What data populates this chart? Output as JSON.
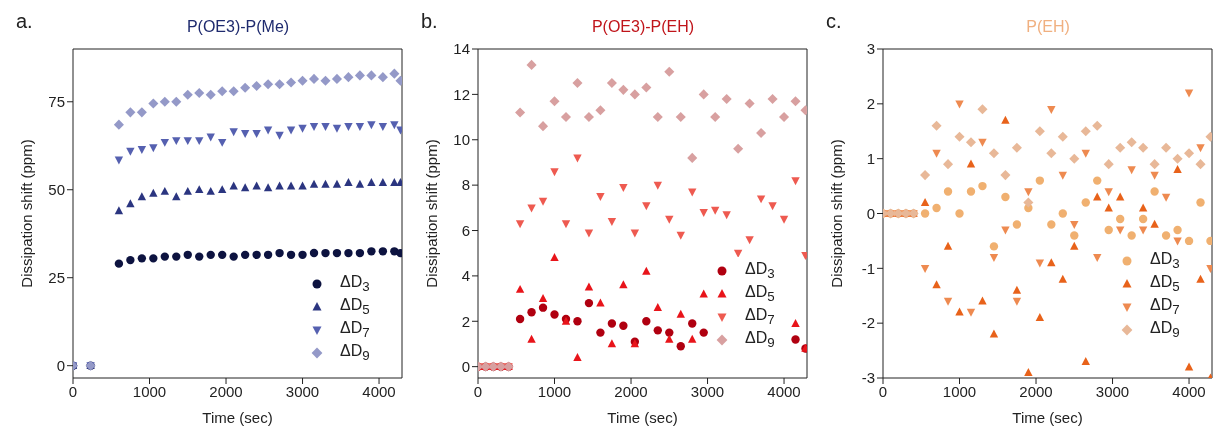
{
  "chart_data": [
    {
      "type": "scatter",
      "title": "P(OE3)-P(Me)",
      "xlabel": "Time (sec)",
      "ylabel": "Dissipation shift (ppm)",
      "annotations": [
        "a."
      ],
      "x": [
        0,
        230,
        600,
        750,
        900,
        1050,
        1200,
        1350,
        1500,
        1650,
        1800,
        1950,
        2100,
        2250,
        2400,
        2550,
        2700,
        2850,
        3000,
        3150,
        3300,
        3450,
        3600,
        3750,
        3900,
        4050,
        4200,
        4280
      ],
      "xlim": [
        0,
        4300
      ],
      "xticks": [
        0,
        1000,
        2000,
        3000,
        4000
      ],
      "ylim": [
        -3.5,
        90
      ],
      "yticks": [
        0,
        25,
        50,
        75
      ],
      "grid": false,
      "legend": "bottom right",
      "series": [
        {
          "name": "ΔD$_{3}$",
          "color": "#0d1340",
          "marker": "circle",
          "values": [
            0,
            0,
            29,
            30,
            30.5,
            30.5,
            31,
            31,
            31.5,
            31,
            31.5,
            31.5,
            31,
            31.5,
            31.5,
            31.5,
            32,
            31.5,
            31.5,
            32,
            32,
            32,
            32,
            32,
            32.5,
            32.5,
            32.5,
            32
          ]
        },
        {
          "name": "ΔD$_{5}$",
          "color": "#2b3580",
          "marker": "triangle",
          "values": [
            0,
            0,
            44,
            46,
            48,
            49,
            49.5,
            48,
            49.5,
            50,
            49.5,
            50,
            51,
            50.5,
            51,
            50.5,
            51,
            51,
            51,
            51.5,
            51.5,
            51.5,
            52,
            51.5,
            52,
            52,
            52,
            52
          ]
        },
        {
          "name": "ΔD$_{7}$",
          "color": "#5560b0",
          "marker": "triangle-down",
          "values": [
            0,
            0,
            58.5,
            61,
            61.5,
            62,
            63.5,
            64,
            64,
            64,
            65,
            63.5,
            66.5,
            66,
            66,
            67,
            65.5,
            67,
            67.5,
            68,
            68,
            67.5,
            68,
            68,
            68.5,
            68,
            68.5,
            67
          ]
        },
        {
          "name": "ΔD$_{9}$",
          "color": "#9499c8",
          "marker": "diamond",
          "values": [
            0,
            0,
            68.5,
            72,
            72,
            74.5,
            75,
            75,
            77,
            77.5,
            77,
            78,
            78,
            79,
            79.5,
            80,
            80,
            80.5,
            81,
            81.5,
            81,
            81.5,
            82,
            82.5,
            82.5,
            82,
            83,
            81
          ]
        }
      ]
    },
    {
      "type": "scatter",
      "title": "P(OE3)-P(EH)",
      "xlabel": "Time (sec)",
      "ylabel": "Dissipation shift (ppm)",
      "annotations": [
        "b."
      ],
      "x": [
        0,
        100,
        200,
        300,
        400,
        550,
        700,
        850,
        1000,
        1150,
        1300,
        1450,
        1600,
        1750,
        1900,
        2050,
        2200,
        2350,
        2500,
        2650,
        2800,
        2950,
        3100,
        3250,
        3400,
        3550,
        3700,
        3850,
        4000,
        4150,
        4280
      ],
      "xlim": [
        0,
        4300
      ],
      "xticks": [
        0,
        1000,
        2000,
        3000,
        4000
      ],
      "ylim": [
        -0.5,
        14
      ],
      "yticks": [
        0,
        2,
        4,
        6,
        8,
        10,
        12,
        14
      ],
      "grid": false,
      "legend": "bottom right",
      "series": [
        {
          "name": "ΔD$_{3}$",
          "color": "#b00010",
          "marker": "circle",
          "values": [
            0,
            0,
            0,
            0,
            0,
            2.1,
            2.4,
            2.6,
            2.3,
            2.1,
            2.0,
            2.8,
            1.5,
            1.9,
            1.8,
            1.1,
            2.0,
            1.6,
            1.5,
            0.9,
            1.9,
            1.5,
            null,
            null,
            null,
            null,
            null,
            null,
            null,
            1.2,
            0.8
          ]
        },
        {
          "name": "ΔD$_{5}$",
          "color": "#e8141a",
          "marker": "triangle",
          "values": [
            0,
            0,
            0,
            0,
            0,
            3.4,
            1.2,
            3.0,
            4.8,
            2.0,
            0.4,
            3.5,
            2.8,
            1.0,
            3.6,
            1.0,
            4.2,
            2.6,
            1.2,
            2.3,
            1.2,
            3.2,
            null,
            null,
            null,
            null,
            null,
            null,
            null,
            1.9,
            0.8
          ]
        },
        {
          "name": "ΔD$_{7}$",
          "color": "#ee5a50",
          "marker": "triangle-down",
          "values": [
            0,
            0,
            0,
            0,
            0,
            6.3,
            7.0,
            7.3,
            8.6,
            6.3,
            9.2,
            5.9,
            7.5,
            6.4,
            7.9,
            5.9,
            7.1,
            8.0,
            6.5,
            5.8,
            7.7,
            6.8,
            6.9,
            6.7,
            5.0,
            5.6,
            7.4,
            7.1,
            6.5,
            8.2,
            4.9
          ]
        },
        {
          "name": "ΔD$_{9}$",
          "color": "#d8a0a0",
          "marker": "diamond",
          "values": [
            0,
            0,
            0,
            0,
            0,
            11.2,
            13.3,
            10.6,
            11.7,
            11.0,
            12.5,
            11.0,
            11.3,
            12.5,
            12.2,
            12.0,
            12.3,
            11.0,
            13.0,
            11.0,
            9.2,
            12.0,
            11.0,
            11.8,
            9.6,
            11.6,
            10.3,
            11.8,
            11.0,
            11.7,
            11.3
          ]
        }
      ]
    },
    {
      "type": "scatter",
      "title": "P(EH)",
      "xlabel": "Time (sec)",
      "ylabel": "Dissipation shift (ppm)",
      "annotations": [
        "c."
      ],
      "x": [
        0,
        100,
        200,
        300,
        400,
        550,
        700,
        850,
        1000,
        1150,
        1300,
        1450,
        1600,
        1750,
        1900,
        2050,
        2200,
        2350,
        2500,
        2650,
        2800,
        2950,
        3100,
        3250,
        3400,
        3550,
        3700,
        3850,
        4000,
        4150,
        4280
      ],
      "xlim": [
        0,
        4300
      ],
      "xticks": [
        0,
        1000,
        2000,
        3000,
        4000
      ],
      "ylim": [
        -3,
        3
      ],
      "yticks": [
        -3,
        -2,
        -1,
        0,
        1,
        2,
        3
      ],
      "grid": false,
      "legend": "bottom right",
      "series": [
        {
          "name": "ΔD$_{3}$",
          "color": "#f0b070",
          "marker": "circle",
          "values": [
            0,
            0,
            0,
            0,
            0,
            0,
            0.1,
            0.4,
            0,
            0.4,
            0.5,
            -0.6,
            0.3,
            -0.2,
            0.1,
            0.6,
            -0.2,
            0,
            -0.4,
            0.2,
            0.6,
            -0.3,
            -0.1,
            -0.4,
            -0.1,
            0.4,
            -0.4,
            -0.3,
            -0.5,
            0.2,
            -0.5
          ]
        },
        {
          "name": "ΔD$_{5}$",
          "color": "#e8621a",
          "marker": "triangle",
          "values": [
            0,
            0,
            0,
            0,
            0,
            0.2,
            -1.3,
            -0.6,
            -1.8,
            0.9,
            -1.6,
            -2.2,
            1.7,
            -1.4,
            -2.9,
            -1.9,
            -0.9,
            -1.2,
            -0.6,
            -2.7,
            0.3,
            0.1,
            0.3,
            null,
            0.1,
            -0.2,
            null,
            0.8,
            -2.8,
            -1.2,
            -3.0
          ]
        },
        {
          "name": "ΔD$_{7}$",
          "color": "#ee8a50",
          "marker": "triangle-down",
          "values": [
            0,
            0,
            0,
            0,
            0,
            -1.0,
            1.1,
            -1.6,
            2.0,
            -1.8,
            1.3,
            -0.8,
            -0.3,
            -1.6,
            0.4,
            -0.9,
            1.9,
            0.7,
            -0.2,
            1.1,
            -0.8,
            0.4,
            -0.3,
            0.8,
            -0.3,
            0.7,
            0.3,
            -0.5,
            2.2,
            1.2,
            -1.0
          ]
        },
        {
          "name": "ΔD$_{9}$",
          "color": "#e8b898",
          "marker": "diamond",
          "values": [
            0,
            0,
            0,
            0,
            0,
            0.7,
            1.6,
            0.9,
            1.4,
            1.3,
            1.9,
            1.1,
            0.7,
            1.2,
            0.2,
            1.5,
            1.1,
            1.4,
            1.0,
            1.5,
            1.6,
            0.9,
            1.2,
            1.3,
            1.2,
            0.9,
            1.2,
            1.0,
            1.1,
            0.9,
            1.4
          ]
        }
      ]
    }
  ]
}
